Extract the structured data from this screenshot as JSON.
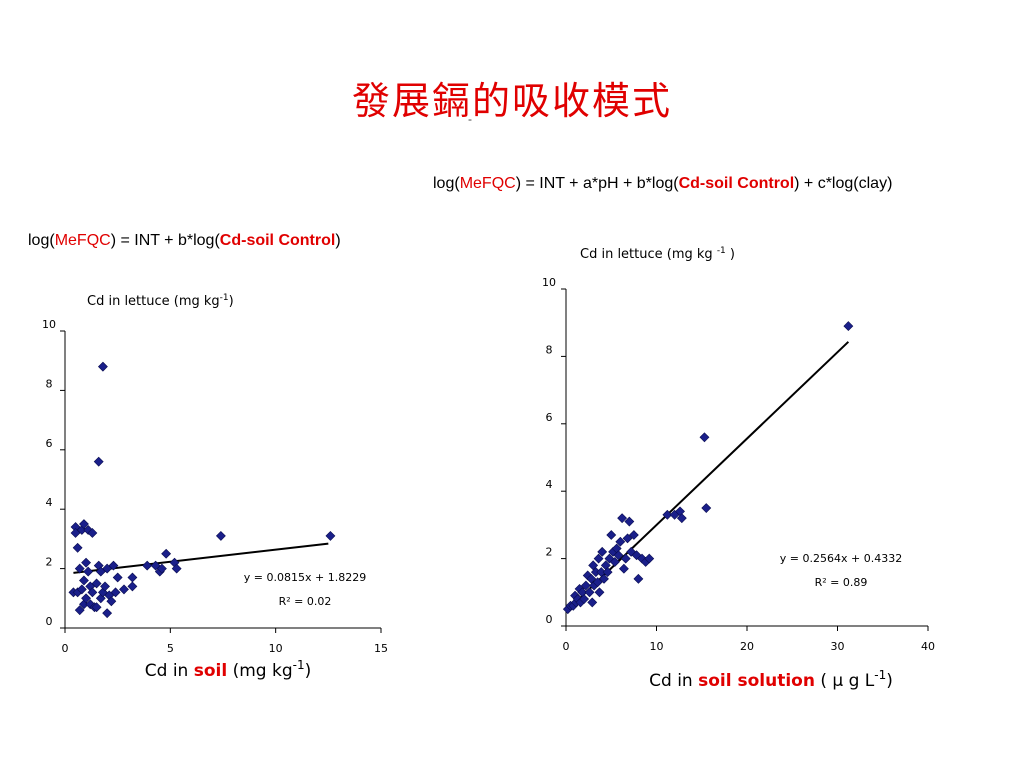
{
  "slide": {
    "title": "發展鎘的吸收模式",
    "subtitle_dash": "-",
    "accent_color": "#e00000",
    "marker_color": "#1a1f8a"
  },
  "models": {
    "right": {
      "prefix": "log(",
      "target": "MeFQC",
      "mid1": ") = INT + a*pH + b*log(",
      "var": "Cd-soil Control",
      "suffix": ") + c*log(clay)"
    },
    "left": {
      "prefix": "log(",
      "target": "MeFQC",
      "mid1": ") = INT + b*log(",
      "var": "Cd-soil Control",
      "suffix": ")"
    }
  },
  "chart_data": [
    {
      "type": "scatter",
      "title": "Cd in lettuce (mg kg-1)",
      "xlabel": {
        "pre": "Cd in ",
        "highlight": "soil",
        "post": " (mg kg-1)"
      },
      "xlim": [
        0,
        15
      ],
      "ylim": [
        0,
        10
      ],
      "xticks": [
        "0",
        "5",
        "10",
        "15"
      ],
      "yticks": [
        "0",
        "2",
        "4",
        "6",
        "8",
        "10"
      ],
      "equation": "y = 0.0815x + 1.8229",
      "r2": "R² = 0.02",
      "trendline": {
        "slope": 0.0815,
        "intercept": 1.8229,
        "x": [
          0.4,
          12.5
        ]
      },
      "points": [
        [
          0.4,
          1.2
        ],
        [
          0.5,
          3.4
        ],
        [
          0.5,
          3.2
        ],
        [
          0.6,
          2.7
        ],
        [
          0.6,
          1.2
        ],
        [
          0.7,
          2.0
        ],
        [
          0.7,
          0.6
        ],
        [
          0.8,
          3.3
        ],
        [
          0.8,
          1.3
        ],
        [
          0.9,
          3.5
        ],
        [
          0.9,
          1.6
        ],
        [
          0.9,
          0.8
        ],
        [
          1.0,
          2.2
        ],
        [
          1.0,
          1.0
        ],
        [
          1.1,
          3.3
        ],
        [
          1.1,
          1.9
        ],
        [
          1.2,
          1.4
        ],
        [
          1.2,
          0.8
        ],
        [
          1.3,
          3.2
        ],
        [
          1.3,
          1.2
        ],
        [
          1.4,
          0.7
        ],
        [
          1.5,
          1.5
        ],
        [
          1.5,
          0.7
        ],
        [
          1.6,
          5.6
        ],
        [
          1.6,
          2.1
        ],
        [
          1.7,
          1.0
        ],
        [
          1.7,
          1.9
        ],
        [
          1.8,
          8.8
        ],
        [
          1.8,
          1.2
        ],
        [
          1.9,
          1.4
        ],
        [
          2.0,
          2.0
        ],
        [
          2.0,
          0.5
        ],
        [
          2.1,
          1.1
        ],
        [
          2.2,
          0.9
        ],
        [
          2.3,
          2.1
        ],
        [
          2.4,
          1.2
        ],
        [
          2.5,
          1.7
        ],
        [
          2.8,
          1.3
        ],
        [
          3.2,
          1.4
        ],
        [
          3.2,
          1.7
        ],
        [
          3.9,
          2.1
        ],
        [
          4.3,
          2.1
        ],
        [
          4.5,
          1.9
        ],
        [
          4.6,
          2.0
        ],
        [
          4.8,
          2.5
        ],
        [
          5.2,
          2.2
        ],
        [
          5.3,
          2.0
        ],
        [
          7.4,
          3.1
        ],
        [
          12.6,
          3.1
        ]
      ]
    },
    {
      "type": "scatter",
      "title": "Cd in lettuce (mg kg -1 )",
      "xlabel": {
        "pre": "Cd in ",
        "highlight": "soil solution",
        "post": " ( μ g L-1)"
      },
      "xlim": [
        0,
        40
      ],
      "ylim": [
        0,
        10
      ],
      "xticks": [
        "0",
        "10",
        "20",
        "30",
        "40"
      ],
      "yticks": [
        "0",
        "2",
        "4",
        "6",
        "8",
        "10"
      ],
      "equation": "y = 0.2564x + 0.4332",
      "r2": "R² = 0.89",
      "trendline": {
        "slope": 0.2564,
        "intercept": 0.4332,
        "x": [
          0.0,
          31.2
        ]
      },
      "points": [
        [
          0.2,
          0.5
        ],
        [
          0.5,
          0.6
        ],
        [
          0.8,
          0.6
        ],
        [
          1.0,
          0.9
        ],
        [
          1.1,
          0.7
        ],
        [
          1.3,
          0.8
        ],
        [
          1.5,
          1.1
        ],
        [
          1.6,
          0.7
        ],
        [
          1.8,
          1.0
        ],
        [
          2.0,
          0.8
        ],
        [
          2.2,
          1.2
        ],
        [
          2.4,
          1.5
        ],
        [
          2.6,
          1.0
        ],
        [
          2.8,
          1.4
        ],
        [
          2.9,
          0.7
        ],
        [
          3.0,
          1.8
        ],
        [
          3.1,
          1.2
        ],
        [
          3.3,
          1.6
        ],
        [
          3.5,
          1.3
        ],
        [
          3.6,
          2.0
        ],
        [
          3.7,
          1.0
        ],
        [
          3.9,
          1.6
        ],
        [
          4.0,
          2.2
        ],
        [
          4.2,
          1.4
        ],
        [
          4.4,
          1.8
        ],
        [
          4.6,
          1.6
        ],
        [
          4.8,
          2.0
        ],
        [
          5.0,
          2.7
        ],
        [
          5.2,
          2.2
        ],
        [
          5.4,
          1.9
        ],
        [
          5.6,
          2.3
        ],
        [
          5.8,
          2.1
        ],
        [
          6.0,
          2.5
        ],
        [
          6.2,
          3.2
        ],
        [
          6.4,
          1.7
        ],
        [
          6.6,
          2.0
        ],
        [
          6.8,
          2.6
        ],
        [
          7.0,
          3.1
        ],
        [
          7.2,
          2.2
        ],
        [
          7.5,
          2.7
        ],
        [
          7.8,
          2.1
        ],
        [
          8.0,
          1.4
        ],
        [
          8.4,
          2.0
        ],
        [
          8.8,
          1.9
        ],
        [
          9.2,
          2.0
        ],
        [
          11.2,
          3.3
        ],
        [
          12.0,
          3.3
        ],
        [
          12.6,
          3.4
        ],
        [
          12.8,
          3.2
        ],
        [
          15.3,
          5.6
        ],
        [
          15.5,
          3.5
        ],
        [
          31.2,
          8.9
        ]
      ]
    }
  ]
}
